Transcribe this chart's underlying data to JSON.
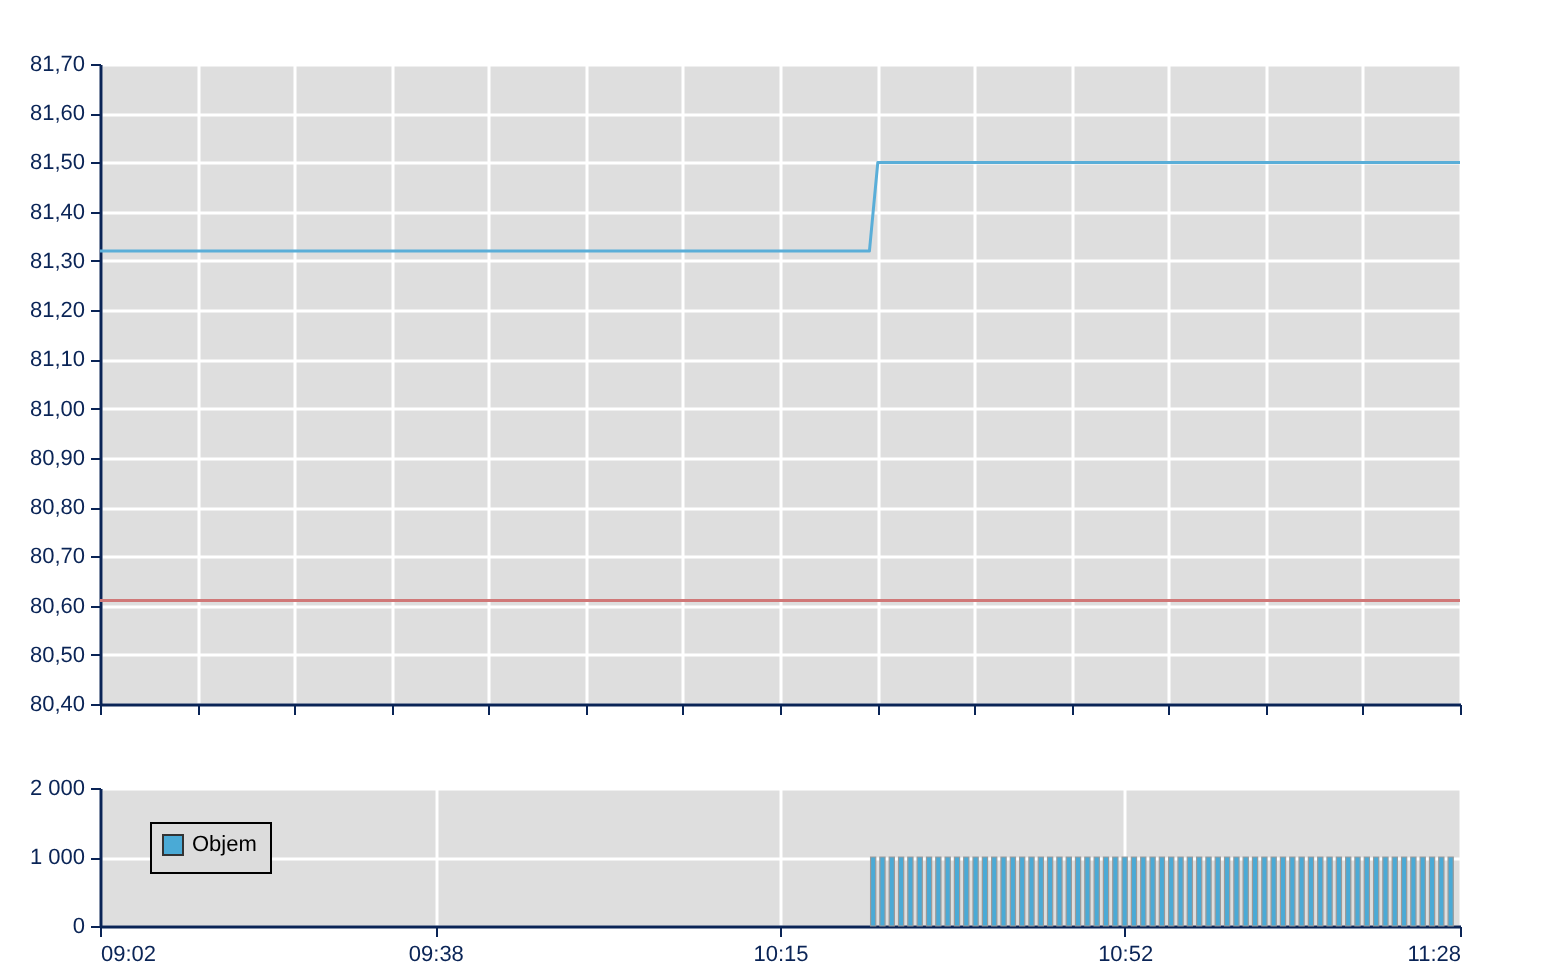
{
  "chart_data": [
    {
      "type": "line",
      "tick_labels": "y",
      "grid": true,
      "series": [
        {
          "color": "#5aaed8",
          "x": [
            9.0333,
            10.41,
            10.425,
            11.4667
          ],
          "values": [
            81.32,
            81.32,
            81.5,
            81.5
          ]
        }
      ],
      "ref_lines": [
        {
          "axis": "y",
          "value": 80.61,
          "color": "#d07878"
        }
      ],
      "xlim": [
        9.0333,
        11.4667
      ],
      "xticks": [
        {
          "value": 9.0333,
          "label": null
        },
        {
          "value": 9.2071,
          "label": null
        },
        {
          "value": 9.381,
          "label": null
        },
        {
          "value": 9.5548,
          "label": null
        },
        {
          "value": 9.7286,
          "label": null
        },
        {
          "value": 9.9024,
          "label": null
        },
        {
          "value": 10.0762,
          "label": null
        },
        {
          "value": 10.25,
          "label": null
        },
        {
          "value": 10.4238,
          "label": null
        },
        {
          "value": 10.5976,
          "label": null
        },
        {
          "value": 10.7714,
          "label": null
        },
        {
          "value": 10.9452,
          "label": null
        },
        {
          "value": 11.119,
          "label": null
        },
        {
          "value": 11.2929,
          "label": null
        },
        {
          "value": 11.4667,
          "label": null
        }
      ],
      "ylim": [
        80.4,
        81.7
      ],
      "yticks": [
        {
          "value": 80.4,
          "label": "80,40"
        },
        {
          "value": 80.5,
          "label": "80,50"
        },
        {
          "value": 80.6,
          "label": "80,60"
        },
        {
          "value": 80.7,
          "label": "80,70"
        },
        {
          "value": 80.8,
          "label": "80,80"
        },
        {
          "value": 80.9,
          "label": "80,90"
        },
        {
          "value": 81.0,
          "label": "81,00"
        },
        {
          "value": 81.1,
          "label": "81,10"
        },
        {
          "value": 81.2,
          "label": "81,20"
        },
        {
          "value": 81.3,
          "label": "81,30"
        },
        {
          "value": 81.4,
          "label": "81,40"
        },
        {
          "value": 81.5,
          "label": "81,50"
        },
        {
          "value": 81.6,
          "label": "81,60"
        },
        {
          "value": 81.7,
          "label": "81,70"
        }
      ]
    },
    {
      "type": "bar",
      "grid": true,
      "legend": "left",
      "series": [
        {
          "name": "Objem",
          "color": "#4aaad6",
          "x": [
            10.4167,
            10.4333,
            10.45,
            10.4667,
            10.4833,
            10.5,
            10.5167,
            10.5333,
            10.55,
            10.5667,
            10.5833,
            10.6,
            10.6167,
            10.6333,
            10.65,
            10.6667,
            10.6833,
            10.7,
            10.7167,
            10.7333,
            10.75,
            10.7667,
            10.7833,
            10.8,
            10.8167,
            10.8333,
            10.85,
            10.8667,
            10.8833,
            10.9,
            10.9167,
            10.9333,
            10.95,
            10.9667,
            10.9833,
            11.0,
            11.0167,
            11.0333,
            11.05,
            11.0667,
            11.0833,
            11.1,
            11.1167,
            11.1333,
            11.15,
            11.1667,
            11.1833,
            11.2,
            11.2167,
            11.2333,
            11.25,
            11.2667,
            11.2833,
            11.3,
            11.3167,
            11.3333,
            11.35,
            11.3667,
            11.3833,
            11.4,
            11.4167,
            11.4333,
            11.45
          ],
          "values": [
            1000,
            1000,
            1000,
            1000,
            1000,
            1000,
            1000,
            1000,
            1000,
            1000,
            1000,
            1000,
            1000,
            1000,
            1000,
            1000,
            1000,
            1000,
            1000,
            1000,
            1000,
            1000,
            1000,
            1000,
            1000,
            1000,
            1000,
            1000,
            1000,
            1000,
            1000,
            1000,
            1000,
            1000,
            1000,
            1000,
            1000,
            1000,
            1000,
            1000,
            1000,
            1000,
            1000,
            1000,
            1000,
            1000,
            1000,
            1000,
            1000,
            1000,
            1000,
            1000,
            1000,
            1000,
            1000,
            1000,
            1000,
            1000,
            1000,
            1000,
            1000,
            1000,
            1000
          ]
        }
      ],
      "xlim": [
        9.0333,
        11.4667
      ],
      "xticks": [
        {
          "value": 9.0333,
          "label": "09:02"
        },
        {
          "value": 9.6333,
          "label": "09:38"
        },
        {
          "value": 10.25,
          "label": "10:15"
        },
        {
          "value": 10.8667,
          "label": "10:52"
        },
        {
          "value": 11.4667,
          "label": "11:28"
        }
      ],
      "ylim": [
        0,
        2000
      ],
      "yticks": [
        {
          "value": 0,
          "label": "0"
        },
        {
          "value": 1000,
          "label": "1 000"
        },
        {
          "value": 2000,
          "label": "2 000"
        }
      ]
    }
  ]
}
